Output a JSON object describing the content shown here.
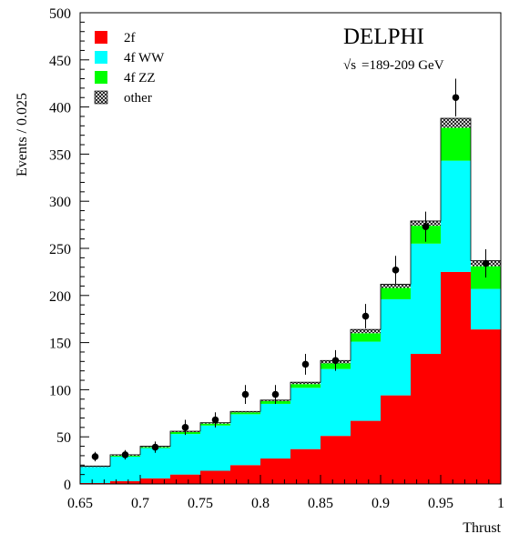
{
  "chart_data": {
    "type": "bar",
    "stacked": true,
    "title": "",
    "experiment_label": "DELPHI",
    "energy_label": "=189-209 GeV",
    "sqrt_s_label": "√s",
    "xlabel": "Thrust",
    "ylabel": "Events / 0.025",
    "xlim": [
      0.65,
      1.0
    ],
    "ylim": [
      0,
      500
    ],
    "x_ticks": [
      0.65,
      0.7,
      0.75,
      0.8,
      0.85,
      0.9,
      0.95,
      1.0
    ],
    "x_tick_labels": [
      "0.65",
      "0.7",
      "0.75",
      "0.8",
      "0.85",
      "0.9",
      "0.95",
      "1"
    ],
    "y_ticks": [
      0,
      50,
      100,
      150,
      200,
      250,
      300,
      350,
      400,
      450,
      500
    ],
    "y_tick_labels": [
      "0",
      "50",
      "100",
      "150",
      "200",
      "250",
      "300",
      "350",
      "400",
      "450",
      "500"
    ],
    "bin_edges": [
      0.65,
      0.675,
      0.7,
      0.725,
      0.75,
      0.775,
      0.8,
      0.825,
      0.85,
      0.875,
      0.9,
      0.925,
      0.95,
      0.975,
      1.0
    ],
    "series": [
      {
        "name": "2f",
        "color": "#ff0000",
        "pattern": "solid",
        "values": [
          1,
          3,
          6,
          10,
          14,
          20,
          27,
          37,
          51,
          67,
          94,
          138,
          225,
          164
        ]
      },
      {
        "name": "4f WW",
        "color": "#00ffff",
        "pattern": "solid",
        "values": [
          17,
          26,
          32,
          43,
          48,
          54,
          58,
          65,
          71,
          84,
          102,
          117,
          118,
          43
        ]
      },
      {
        "name": "4f ZZ",
        "color": "#00ff00",
        "pattern": "solid",
        "values": [
          0,
          1,
          1,
          2,
          2,
          2,
          3,
          4,
          6,
          9,
          12,
          19,
          35,
          24
        ]
      },
      {
        "name": "other",
        "color": "#000000",
        "pattern": "crosshatch",
        "values": [
          1,
          1,
          1,
          1,
          1,
          1,
          1,
          2,
          3,
          4,
          4,
          5,
          10,
          6
        ]
      }
    ],
    "data_points": {
      "x": [
        0.6625,
        0.6875,
        0.7125,
        0.7375,
        0.7625,
        0.7875,
        0.8125,
        0.8375,
        0.8625,
        0.8875,
        0.9125,
        0.9375,
        0.9625,
        0.9875
      ],
      "y": [
        29,
        31,
        39,
        60,
        68,
        95,
        95,
        127,
        131,
        178,
        227,
        273,
        410,
        234
      ],
      "err": [
        5,
        5,
        6,
        8,
        8,
        10,
        10,
        11,
        11,
        13,
        15,
        16,
        20,
        15
      ]
    },
    "legend_position": "top-left"
  }
}
